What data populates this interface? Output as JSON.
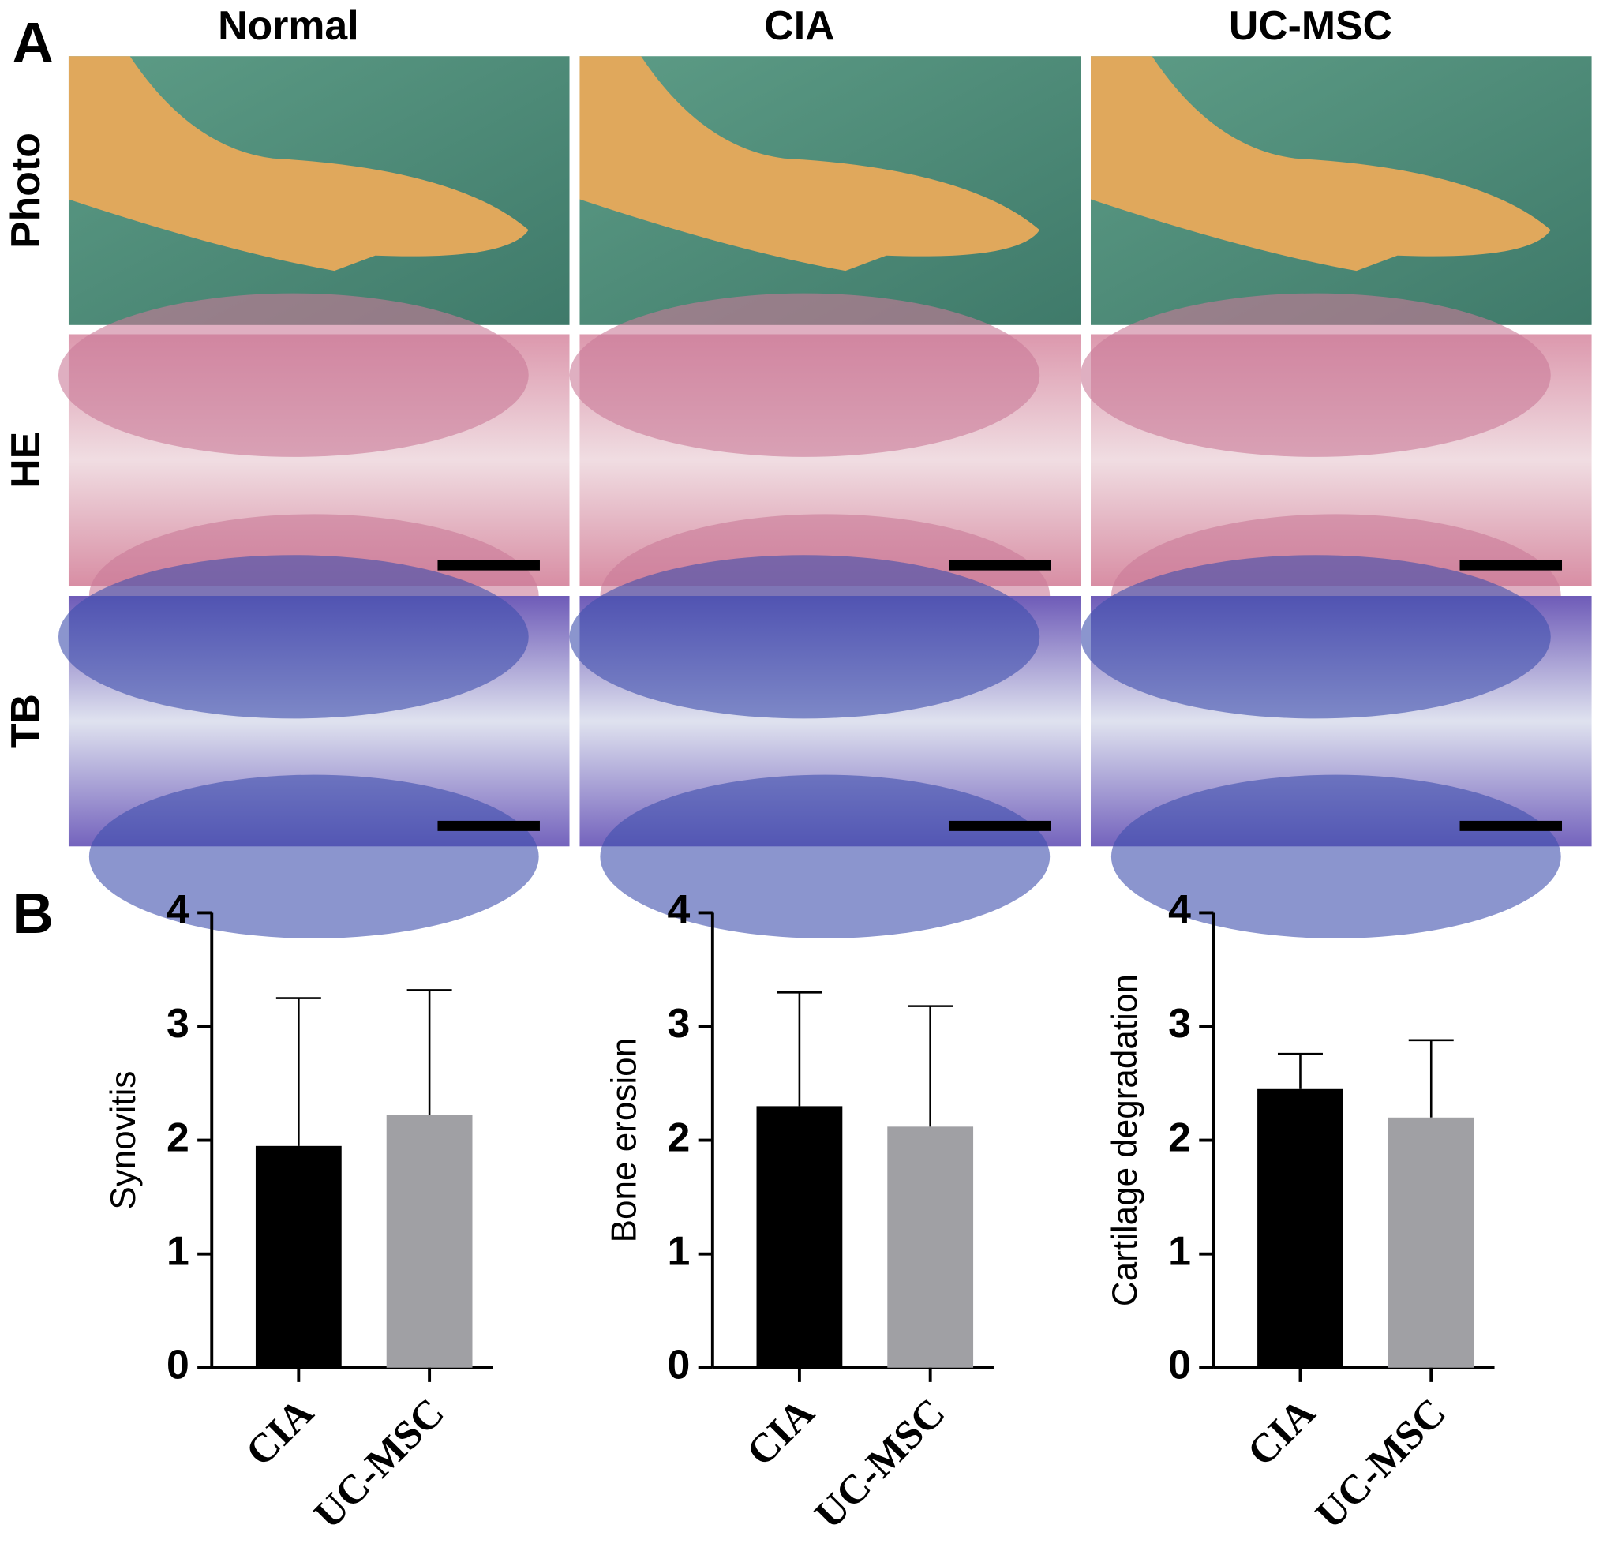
{
  "panel_labels": [
    "A",
    "B"
  ],
  "columns": [
    "Normal",
    "CIA",
    "UC-MSC"
  ],
  "rows": [
    "Photo",
    "HE",
    "TB"
  ],
  "chart_data": [
    {
      "type": "bar",
      "y_label": "Synovitis",
      "categories": [
        "CIA",
        "UC-MSC"
      ],
      "values": [
        1.95,
        2.22
      ],
      "errors": [
        1.3,
        1.1
      ],
      "colors": [
        "#000000",
        "#a0a0a4"
      ],
      "ylim": [
        0,
        4
      ],
      "yticks": [
        0,
        1,
        2,
        3,
        4
      ]
    },
    {
      "type": "bar",
      "y_label": "Bone erosion",
      "categories": [
        "CIA",
        "UC-MSC"
      ],
      "values": [
        2.3,
        2.12
      ],
      "errors": [
        1.0,
        1.06
      ],
      "colors": [
        "#000000",
        "#a0a0a4"
      ],
      "ylim": [
        0,
        4
      ],
      "yticks": [
        0,
        1,
        2,
        3,
        4
      ]
    },
    {
      "type": "bar",
      "y_label": "Cartilage degradation",
      "categories": [
        "CIA",
        "UC-MSC"
      ],
      "values": [
        2.45,
        2.2
      ],
      "errors": [
        0.31,
        0.68
      ],
      "colors": [
        "#000000",
        "#a0a0a4"
      ],
      "ylim": [
        0,
        4
      ],
      "yticks": [
        0,
        1,
        2,
        3,
        4
      ]
    }
  ]
}
